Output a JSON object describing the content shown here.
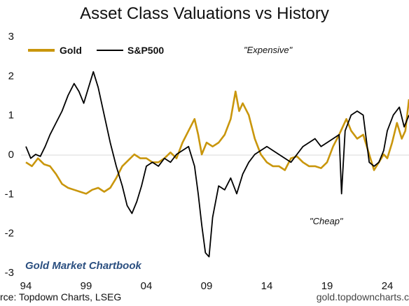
{
  "chart_data": {
    "type": "line",
    "title": "Asset Class Valuations vs History",
    "xlabel": "",
    "ylabel": "",
    "xlim": [
      1994,
      2025.8
    ],
    "ylim": [
      -3,
      3
    ],
    "x_ticks": [
      "94",
      "99",
      "04",
      "09",
      "14",
      "19",
      "24"
    ],
    "y_ticks": [
      "3",
      "2",
      "1",
      "0",
      "-1",
      "-2",
      "-3"
    ],
    "legend_position": "top-left",
    "annotations": [
      "\"Expensive\"",
      "\"Cheap\""
    ],
    "series": [
      {
        "name": "Gold",
        "color": "#c9960c",
        "x": [
          1994.0,
          1994.5,
          1995.0,
          1995.5,
          1996.0,
          1996.5,
          1997.0,
          1997.5,
          1998.0,
          1998.5,
          1999.0,
          1999.5,
          2000.0,
          2000.5,
          2001.0,
          2001.5,
          2002.0,
          2002.5,
          2003.0,
          2003.5,
          2004.0,
          2004.5,
          2005.0,
          2005.5,
          2006.0,
          2006.5,
          2007.0,
          2007.5,
          2008.0,
          2008.3,
          2008.6,
          2009.0,
          2009.5,
          2010.0,
          2010.5,
          2011.0,
          2011.4,
          2011.7,
          2012.0,
          2012.5,
          2013.0,
          2013.5,
          2014.0,
          2014.5,
          2015.0,
          2015.5,
          2016.0,
          2016.5,
          2017.0,
          2017.5,
          2018.0,
          2018.5,
          2019.0,
          2019.5,
          2020.0,
          2020.6,
          2021.0,
          2021.5,
          2022.0,
          2022.5,
          2022.9,
          2023.3,
          2023.7,
          2024.0,
          2024.4,
          2024.8,
          2025.2,
          2025.5,
          2025.8
        ],
        "values": [
          -0.2,
          -0.3,
          -0.1,
          -0.25,
          -0.3,
          -0.5,
          -0.75,
          -0.85,
          -0.9,
          -0.95,
          -1.0,
          -0.9,
          -0.85,
          -0.95,
          -0.85,
          -0.6,
          -0.3,
          -0.15,
          0.0,
          -0.1,
          -0.1,
          -0.2,
          -0.2,
          -0.1,
          0.05,
          -0.1,
          0.3,
          0.6,
          0.9,
          0.5,
          0.0,
          0.3,
          0.2,
          0.3,
          0.5,
          0.9,
          1.6,
          1.1,
          1.3,
          1.0,
          0.4,
          0.0,
          -0.2,
          -0.3,
          -0.3,
          -0.4,
          -0.1,
          -0.05,
          -0.2,
          -0.3,
          -0.3,
          -0.35,
          -0.2,
          0.2,
          0.5,
          0.9,
          0.6,
          0.4,
          0.5,
          0.0,
          -0.4,
          -0.2,
          0.0,
          -0.1,
          0.3,
          0.8,
          0.4,
          0.6,
          1.4
        ]
      },
      {
        "name": "S&P500",
        "color": "#000000",
        "x": [
          1994.0,
          1994.4,
          1994.8,
          1995.2,
          1995.6,
          1996.0,
          1996.5,
          1997.0,
          1997.5,
          1998.0,
          1998.4,
          1998.8,
          1999.2,
          1999.6,
          2000.0,
          2000.5,
          2001.0,
          2001.5,
          2002.0,
          2002.4,
          2002.8,
          2003.2,
          2003.6,
          2004.0,
          2004.5,
          2005.0,
          2005.5,
          2006.0,
          2006.5,
          2007.0,
          2007.5,
          2008.0,
          2008.3,
          2008.6,
          2008.9,
          2009.2,
          2009.5,
          2010.0,
          2010.5,
          2011.0,
          2011.5,
          2012.0,
          2012.5,
          2013.0,
          2013.5,
          2014.0,
          2014.5,
          2015.0,
          2015.5,
          2016.0,
          2016.5,
          2017.0,
          2017.5,
          2018.0,
          2018.5,
          2019.0,
          2019.5,
          2020.0,
          2020.2,
          2020.5,
          2021.0,
          2021.5,
          2022.0,
          2022.5,
          2022.9,
          2023.3,
          2023.7,
          2024.0,
          2024.5,
          2025.0,
          2025.4,
          2025.8
        ],
        "values": [
          0.2,
          -0.1,
          0.0,
          -0.05,
          0.2,
          0.5,
          0.8,
          1.1,
          1.5,
          1.8,
          1.6,
          1.3,
          1.7,
          2.1,
          1.7,
          1.0,
          0.3,
          -0.3,
          -0.8,
          -1.3,
          -1.5,
          -1.2,
          -0.8,
          -0.3,
          -0.2,
          -0.3,
          -0.1,
          -0.2,
          0.0,
          0.1,
          0.2,
          -0.3,
          -1.0,
          -1.8,
          -2.5,
          -2.6,
          -1.6,
          -0.8,
          -0.9,
          -0.6,
          -1.0,
          -0.5,
          -0.2,
          0.0,
          0.1,
          0.2,
          0.1,
          0.0,
          -0.1,
          -0.2,
          0.0,
          0.2,
          0.3,
          0.4,
          0.2,
          0.3,
          0.4,
          0.5,
          -1.0,
          0.6,
          1.0,
          1.1,
          1.0,
          -0.2,
          -0.3,
          -0.2,
          0.1,
          0.6,
          1.0,
          1.2,
          0.7,
          1.0
        ]
      }
    ]
  },
  "legend": {
    "gold_label": "Gold",
    "sp500_label": "S&P500"
  },
  "annotations": {
    "expensive": "\"Expensive\"",
    "cheap": "\"Cheap\""
  },
  "footer": {
    "chartbook": "Gold Market Chartbook",
    "source": "rce: Topdown Charts, LSEG",
    "website": "gold.topdowncharts.c"
  }
}
